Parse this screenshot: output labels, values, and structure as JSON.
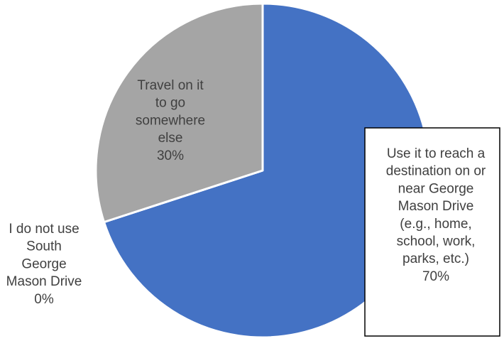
{
  "chart_data": {
    "type": "pie",
    "title": "",
    "slices": [
      {
        "label_lines": [
          "Use it to reach a",
          "destination on or",
          "near George",
          "Mason Drive",
          "(e.g., home,",
          "school, work,",
          "parks, etc.)"
        ],
        "value": 70,
        "value_label": "70%",
        "color": "#4472C4"
      },
      {
        "label_lines": [
          "I do not use",
          "South",
          "George",
          "Mason Drive"
        ],
        "value": 0,
        "value_label": "0%",
        "color": "#ED7D31"
      },
      {
        "label_lines": [
          "Travel on it",
          "to go",
          "somewhere",
          "else"
        ],
        "value": 30,
        "value_label": "30%",
        "color": "#A5A5A5"
      }
    ]
  }
}
